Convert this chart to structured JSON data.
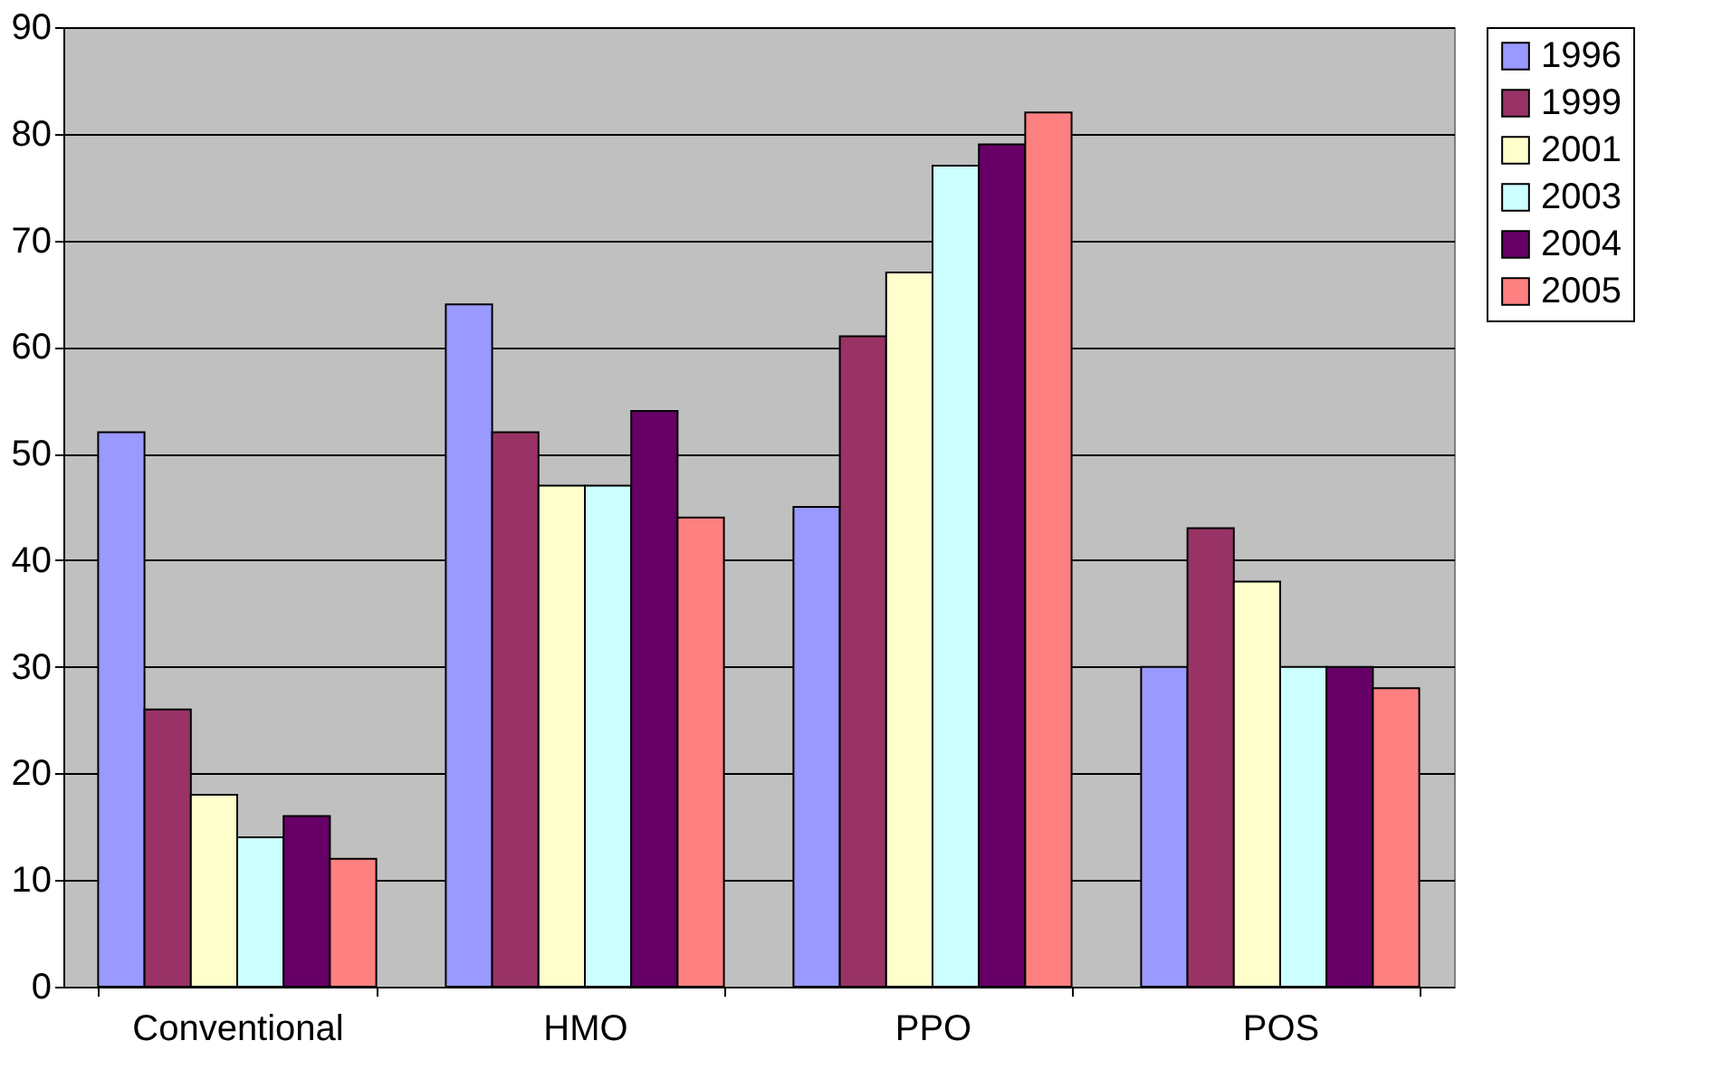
{
  "chart_data": {
    "type": "bar",
    "categories": [
      "Conventional",
      "HMO",
      "PPO",
      "POS"
    ],
    "series": [
      {
        "name": "1996",
        "color": "#9999ff",
        "values": [
          52,
          64,
          45,
          30
        ]
      },
      {
        "name": "1999",
        "color": "#993366",
        "values": [
          26,
          52,
          61,
          43
        ]
      },
      {
        "name": "2001",
        "color": "#ffffcc",
        "values": [
          18,
          47,
          67,
          38
        ]
      },
      {
        "name": "2003",
        "color": "#ccffff",
        "values": [
          14,
          47,
          77,
          30
        ]
      },
      {
        "name": "2004",
        "color": "#660066",
        "values": [
          16,
          54,
          79,
          30
        ]
      },
      {
        "name": "2005",
        "color": "#ff8080",
        "values": [
          12,
          44,
          82,
          28
        ]
      }
    ],
    "ylim": [
      0,
      90
    ],
    "yticks": [
      0,
      10,
      20,
      30,
      40,
      50,
      60,
      70,
      80,
      90
    ],
    "grid": "y",
    "legend": "right"
  }
}
